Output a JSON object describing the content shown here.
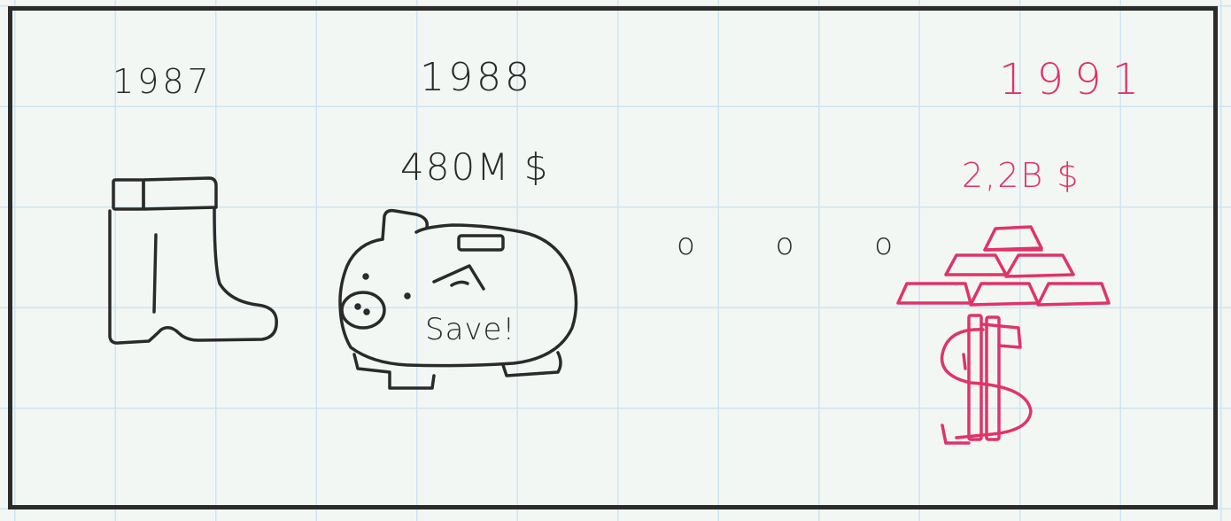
{
  "timeline": [
    {
      "year": "1987",
      "amount": "",
      "icon": "boot-icon",
      "color": "#2a2a2a"
    },
    {
      "year": "1988",
      "amount": "480M $",
      "icon": "piggy-bank-icon",
      "caption": "Save!",
      "color": "#2a2a2a"
    },
    {
      "year": "1991",
      "amount": "2,2B $",
      "icon": "gold-bars-dollar-icon",
      "color": "#e0336a"
    }
  ],
  "ellipsis": "o o o",
  "colors": {
    "background": "#f2f7f3",
    "grid": "#cfe3f4",
    "ink": "#2a2a2a",
    "accent": "#e0336a"
  }
}
